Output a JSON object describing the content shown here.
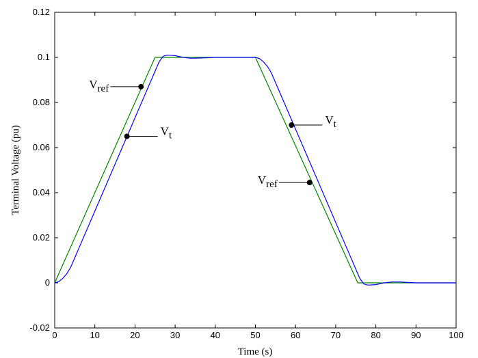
{
  "chart_data": {
    "type": "line",
    "title": "",
    "xlabel": "Time (s)",
    "ylabel": "Terminal Voltage (pu)",
    "xlim": [
      0,
      100
    ],
    "ylim": [
      -0.02,
      0.12
    ],
    "xticks": [
      0,
      10,
      20,
      30,
      40,
      50,
      60,
      70,
      80,
      90,
      100
    ],
    "yticks": [
      -0.02,
      0,
      0.02,
      0.04,
      0.06,
      0.08,
      0.1,
      0.12
    ],
    "ytick_labels": [
      "-0.02",
      "0",
      "0.02",
      "0.04",
      "0.06",
      "0.08",
      "0.1",
      "0.12"
    ],
    "grid": false,
    "legend": "none",
    "series": [
      {
        "color": "#008000",
        "x": [
          0,
          25,
          50,
          75.5,
          100
        ],
        "y": [
          0,
          0.1,
          0.1,
          0,
          0
        ]
      },
      {
        "color": "#0000ff",
        "x": [
          0,
          1,
          2,
          3,
          4,
          26,
          27,
          28,
          30,
          32,
          34,
          36,
          40,
          50,
          51,
          52,
          53,
          54,
          76,
          77,
          78,
          80,
          82,
          84,
          86,
          90,
          100
        ],
        "y": [
          0,
          0.0005,
          0.002,
          0.004,
          0.007,
          0.098,
          0.1005,
          0.101,
          0.1008,
          0.1,
          0.0996,
          0.0997,
          0.1,
          0.1,
          0.0995,
          0.098,
          0.096,
          0.093,
          0.002,
          -0.0005,
          -0.001,
          -0.0008,
          0,
          0.0004,
          0.0004,
          0,
          0
        ]
      }
    ],
    "annotations": [
      {
        "base": "V",
        "sub": "ref",
        "point": [
          21.5,
          0.087
        ]
      },
      {
        "base": "V",
        "sub": "t",
        "point": [
          18,
          0.065
        ]
      },
      {
        "base": "V",
        "sub": "t",
        "point": [
          59,
          0.07
        ]
      },
      {
        "base": "V",
        "sub": "ref",
        "point": [
          63.5,
          0.0445
        ]
      }
    ]
  }
}
